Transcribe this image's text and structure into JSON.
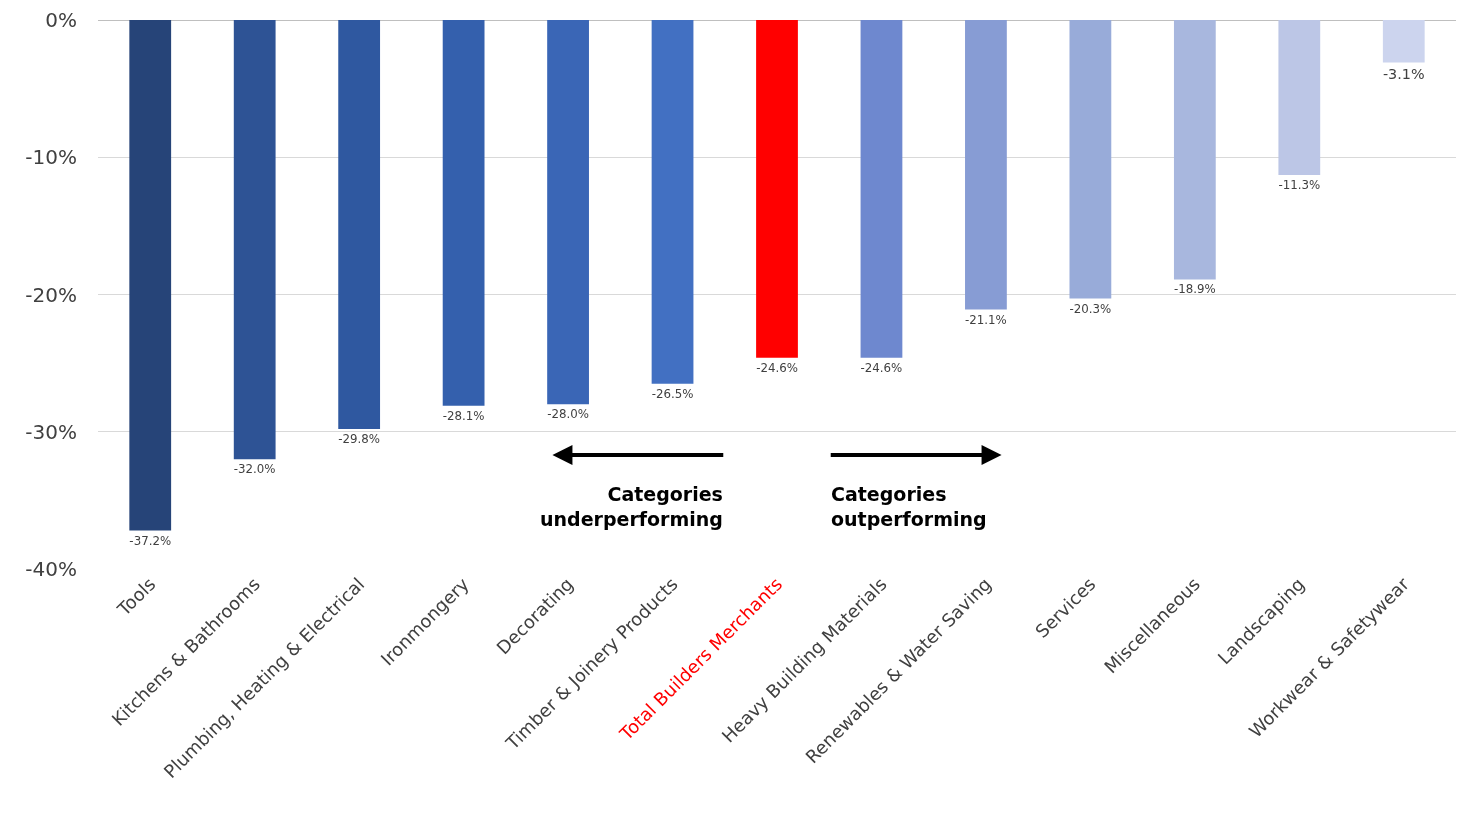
{
  "chart_data": {
    "type": "bar",
    "categories": [
      "Tools",
      "Kitchens & Bathrooms",
      "Plumbing, Heating & Electrical",
      "Ironmongery",
      "Decorating",
      "Timber & Joinery Products",
      "Total Builders Merchants",
      "Heavy Building Materials",
      "Renewables & Water Saving",
      "Services",
      "Miscellaneous",
      "Landscaping",
      "Workwear & Safetywear"
    ],
    "values": [
      -37.2,
      -32.0,
      -29.8,
      -28.1,
      -28.0,
      -26.5,
      -24.6,
      -24.6,
      -21.1,
      -20.3,
      -18.9,
      -11.3,
      -3.1
    ],
    "value_labels": [
      "-37.2%",
      "-32.0%",
      "-29.8%",
      "-28.1%",
      "-28.0%",
      "-26.5%",
      "-24.6%",
      "-24.6%",
      "-21.1%",
      "-20.3%",
      "-18.9%",
      "-11.3%",
      "-3.1%"
    ],
    "colors": [
      "#264478",
      "#2e5395",
      "#2f58a0",
      "#3460ad",
      "#3a66b6",
      "#4270c2",
      "#ff0000",
      "#6e88cf",
      "#879cd4",
      "#98abd9",
      "#a8b7de",
      "#bcc6e6",
      "#ccd4ee"
    ],
    "ylim": [
      -40,
      0
    ],
    "yticks": [
      {
        "value": 0,
        "label": "0%"
      },
      {
        "value": -10,
        "label": "-10%"
      },
      {
        "value": -20,
        "label": "-20%"
      },
      {
        "value": -30,
        "label": "-30%"
      },
      {
        "value": -40,
        "label": "-40%"
      }
    ],
    "grid": "y",
    "annotations": [
      "Categories underperforming",
      "Categories outperforming"
    ]
  }
}
